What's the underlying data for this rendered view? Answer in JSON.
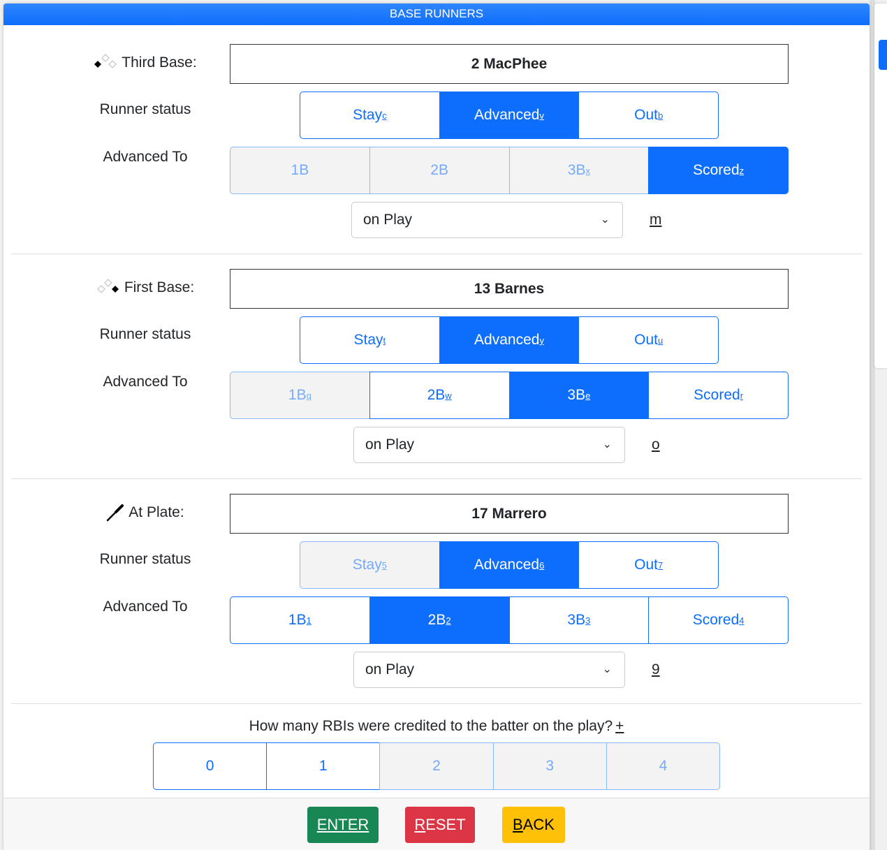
{
  "header": {
    "title": "BASE RUNNERS"
  },
  "colors": {
    "primary": "#0d6efd",
    "enter": "#198754",
    "reset": "#dc3545",
    "back": "#ffc107"
  },
  "sections": [
    {
      "icon": "third-base-diamond-icon",
      "base_label": "Third Base:",
      "runner": "2 MacPhee",
      "status_label": "Runner status",
      "advanced_label": "Advanced To",
      "status_buttons": [
        {
          "label": "Stay",
          "key": "c",
          "state": "normal"
        },
        {
          "label": "Advanced",
          "key": "v",
          "state": "active"
        },
        {
          "label": "Out",
          "key": "b",
          "state": "normal"
        }
      ],
      "advance_buttons": [
        {
          "label": "1B",
          "key": "",
          "state": "disabled"
        },
        {
          "label": "2B",
          "key": "",
          "state": "disabled"
        },
        {
          "label": "3B",
          "key": "x",
          "state": "disabled"
        },
        {
          "label": "Scored",
          "key": "z",
          "state": "active"
        }
      ],
      "select_value": "on Play",
      "select_key": "m"
    },
    {
      "icon": "first-base-diamond-icon",
      "base_label": "First Base:",
      "runner": "13 Barnes",
      "status_label": "Runner status",
      "advanced_label": "Advanced To",
      "status_buttons": [
        {
          "label": "Stay",
          "key": "t",
          "state": "normal"
        },
        {
          "label": "Advanced",
          "key": "y",
          "state": "active"
        },
        {
          "label": "Out",
          "key": "u",
          "state": "normal"
        }
      ],
      "advance_buttons": [
        {
          "label": "1B",
          "key": "q",
          "state": "disabled"
        },
        {
          "label": "2B",
          "key": "w",
          "state": "normal"
        },
        {
          "label": "3B",
          "key": "e",
          "state": "active"
        },
        {
          "label": "Scored",
          "key": "r",
          "state": "normal"
        }
      ],
      "select_value": "on Play",
      "select_key": "o"
    },
    {
      "icon": "bat-icon",
      "base_label": "At Plate:",
      "runner": "17 Marrero",
      "status_label": "Runner status",
      "advanced_label": "Advanced To",
      "status_buttons": [
        {
          "label": "Stay",
          "key": "5",
          "state": "disabled"
        },
        {
          "label": "Advanced",
          "key": "6",
          "state": "active"
        },
        {
          "label": "Out",
          "key": "7",
          "state": "normal"
        }
      ],
      "advance_buttons": [
        {
          "label": "1B",
          "key": "1",
          "state": "normal"
        },
        {
          "label": "2B",
          "key": "2",
          "state": "active"
        },
        {
          "label": "3B",
          "key": "3",
          "state": "normal"
        },
        {
          "label": "Scored",
          "key": "4",
          "state": "normal"
        }
      ],
      "select_value": "on Play",
      "select_key": "9"
    }
  ],
  "rbi": {
    "question": "How many RBIs were credited to the batter on the play?",
    "key": "+",
    "options": [
      {
        "label": "0",
        "state": "normal"
      },
      {
        "label": "1",
        "state": "normal"
      },
      {
        "label": "2",
        "state": "disabled"
      },
      {
        "label": "3",
        "state": "disabled"
      },
      {
        "label": "4",
        "state": "disabled"
      }
    ]
  },
  "footer": {
    "enter": {
      "key": "E",
      "rest": "NTER"
    },
    "reset": {
      "key": "R",
      "rest": "ESET"
    },
    "back": {
      "key": "B",
      "rest": "ACK"
    }
  }
}
